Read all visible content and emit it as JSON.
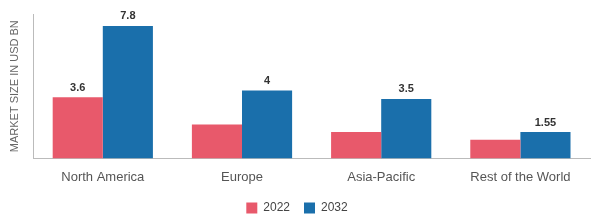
{
  "chart_data": {
    "type": "bar",
    "y_label": "MARKET SIZE IN USD BN",
    "categories": [
      "North America",
      "Europe",
      "Asia-Pacific",
      "Rest of the World"
    ],
    "series": [
      {
        "name": "2022",
        "color": "#e8596b",
        "values": [
          3.6,
          2.0,
          1.55,
          1.1
        ],
        "value_labels": [
          "3.6",
          null,
          null,
          null
        ]
      },
      {
        "name": "2032",
        "color": "#1a6fab",
        "values": [
          7.8,
          4.0,
          3.5,
          1.55
        ]
      }
    ],
    "ylim": [
      0,
      8.5
    ],
    "grid": false,
    "legend": "bottom",
    "data_labels": true,
    "tick_labels": "x"
  }
}
